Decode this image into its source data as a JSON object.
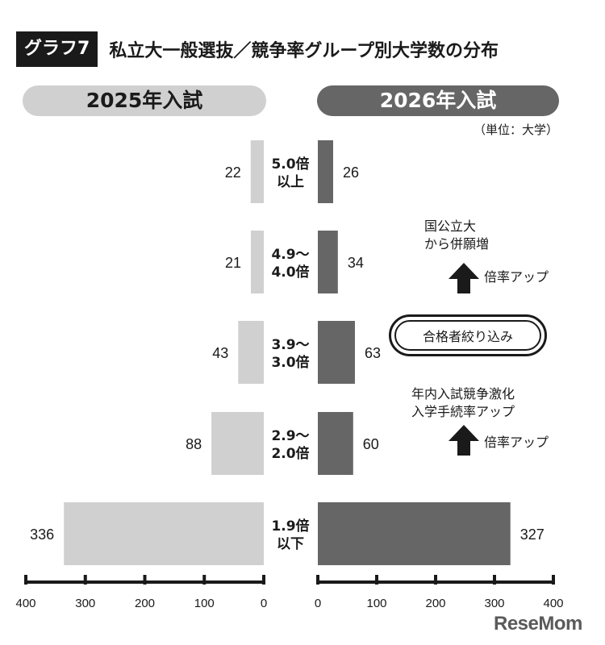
{
  "header": {
    "badge": "グラフ7",
    "title": "私立大一般選抜／競争率グループ別大学数の分布"
  },
  "panels": {
    "left_title": "2025年入試",
    "right_title": "2026年入試"
  },
  "unit_label": "（単位：大学）",
  "annotations": {
    "upper_note_1": "国公立大",
    "upper_note_2": "から併願増",
    "upper_arrow_label": "倍率アップ",
    "oval_label": "合格者絞り込み",
    "lower_note_1": "年内入試競争激化",
    "lower_note_2": "入学手続率アップ",
    "lower_arrow_label": "倍率アップ"
  },
  "brand": "ReseMom",
  "colors": {
    "bar_2025": "#d0d0d0",
    "bar_2026": "#666666",
    "axis": "#1a1a1a"
  },
  "chart_data": {
    "type": "bar",
    "orientation": "horizontal-butterfly",
    "categories": [
      [
        "5.0倍",
        "以上"
      ],
      [
        "4.9～",
        "4.0倍"
      ],
      [
        "3.9～",
        "3.0倍"
      ],
      [
        "2.9～",
        "2.0倍"
      ],
      [
        "1.9倍",
        "以下"
      ]
    ],
    "series": [
      {
        "name": "2025年入試",
        "values": [
          22,
          21,
          43,
          88,
          336
        ]
      },
      {
        "name": "2026年入試",
        "values": [
          26,
          34,
          63,
          60,
          327
        ]
      }
    ],
    "xlim": [
      0,
      400
    ],
    "ticks": [
      0,
      100,
      200,
      300,
      400
    ],
    "tick_labels_left": [
      "400",
      "300",
      "200",
      "100",
      "0"
    ],
    "tick_labels_right": [
      "0",
      "100",
      "200",
      "300",
      "400"
    ]
  }
}
